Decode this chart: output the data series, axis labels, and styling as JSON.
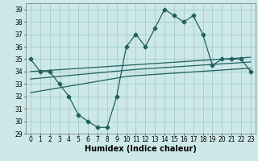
{
  "x": [
    0,
    1,
    2,
    3,
    4,
    5,
    6,
    7,
    8,
    9,
    10,
    11,
    12,
    13,
    14,
    15,
    16,
    17,
    18,
    19,
    20,
    21,
    22,
    23
  ],
  "main_y": [
    35,
    34,
    34,
    33,
    32,
    30.5,
    30,
    29.5,
    29.5,
    32,
    36,
    37,
    36,
    37.5,
    39,
    38.5,
    38,
    38.5,
    37,
    34.5,
    35,
    35,
    35,
    34
  ],
  "line1_y": [
    34.0,
    34.05,
    34.1,
    34.15,
    34.2,
    34.25,
    34.3,
    34.35,
    34.4,
    34.45,
    34.5,
    34.55,
    34.6,
    34.65,
    34.7,
    34.75,
    34.8,
    34.85,
    34.9,
    34.95,
    35.0,
    35.05,
    35.1,
    35.15
  ],
  "line2_y": [
    33.4,
    33.47,
    33.54,
    33.61,
    33.68,
    33.75,
    33.82,
    33.89,
    33.96,
    34.03,
    34.1,
    34.17,
    34.22,
    34.27,
    34.32,
    34.37,
    34.42,
    34.47,
    34.52,
    34.57,
    34.62,
    34.67,
    34.72,
    34.77
  ],
  "line3_y": [
    32.3,
    32.43,
    32.56,
    32.69,
    32.82,
    32.95,
    33.08,
    33.21,
    33.34,
    33.47,
    33.6,
    33.67,
    33.72,
    33.77,
    33.82,
    33.87,
    33.92,
    33.97,
    34.02,
    34.07,
    34.12,
    34.17,
    34.22,
    34.27
  ],
  "main_color": "#206060",
  "line_color": "#206060",
  "bg_color": "#cce8e8",
  "grid_color": "#aacccc",
  "xlabel": "Humidex (Indice chaleur)",
  "xlim": [
    -0.5,
    23.5
  ],
  "ylim": [
    29,
    39.5
  ],
  "yticks": [
    29,
    30,
    31,
    32,
    33,
    34,
    35,
    36,
    37,
    38,
    39
  ],
  "xticks": [
    0,
    1,
    2,
    3,
    4,
    5,
    6,
    7,
    8,
    9,
    10,
    11,
    12,
    13,
    14,
    15,
    16,
    17,
    18,
    19,
    20,
    21,
    22,
    23
  ],
  "marker": "D",
  "markersize": 2.5,
  "linewidth": 0.9,
  "xlabel_fontsize": 7,
  "tick_fontsize": 5.5
}
